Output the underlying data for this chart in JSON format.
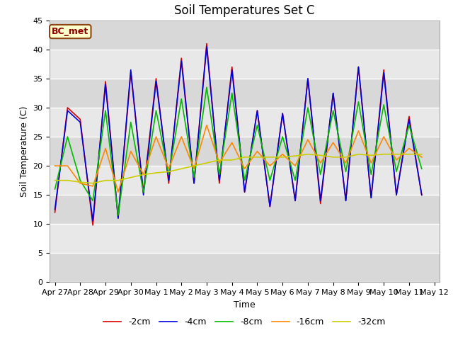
{
  "title": "Soil Temperatures Set C",
  "xlabel": "Time",
  "ylabel": "Soil Temperature (C)",
  "legend_label": "BC_met",
  "series_labels": [
    "-2cm",
    "-4cm",
    "-8cm",
    "-16cm",
    "-32cm"
  ],
  "series_colors": [
    "#dd0000",
    "#0000dd",
    "#00bb00",
    "#ff8800",
    "#cccc00"
  ],
  "ylim": [
    0,
    45
  ],
  "yticks": [
    0,
    5,
    10,
    15,
    20,
    25,
    30,
    35,
    40,
    45
  ],
  "background_color": "#e8e8e8",
  "fig_background": "#ffffff",
  "title_fontsize": 12,
  "label_fontsize": 9,
  "tick_fontsize": 8,
  "x_dates": [
    "Apr 27",
    "Apr 28",
    "Apr 29",
    "Apr 30",
    "May 1",
    "May 2",
    "May 3",
    "May 4",
    "May 5",
    "May 6",
    "May 7",
    "May 8",
    "May 9",
    "May 10",
    "May 11",
    "May 12"
  ],
  "data_2cm": [
    12.0,
    30.0,
    28.0,
    9.8,
    34.5,
    11.0,
    36.0,
    15.5,
    35.0,
    17.0,
    38.5,
    17.0,
    41.0,
    17.0,
    37.0,
    15.5,
    29.5,
    13.0,
    29.0,
    14.0,
    35.0,
    13.5,
    32.5,
    14.0,
    37.0,
    14.5,
    36.5,
    15.0,
    28.5,
    15.0
  ],
  "data_4cm": [
    12.5,
    29.5,
    27.5,
    10.5,
    34.0,
    11.0,
    36.5,
    15.0,
    34.5,
    17.5,
    38.0,
    17.0,
    40.5,
    17.5,
    36.5,
    15.5,
    29.5,
    13.0,
    29.0,
    14.0,
    35.0,
    14.0,
    32.5,
    14.0,
    37.0,
    14.5,
    36.0,
    15.0,
    28.0,
    15.0
  ],
  "data_8cm": [
    16.0,
    25.0,
    17.5,
    14.0,
    29.5,
    11.5,
    27.5,
    15.5,
    29.5,
    18.5,
    31.5,
    18.0,
    33.5,
    18.5,
    32.5,
    17.5,
    27.0,
    17.5,
    25.0,
    17.5,
    30.0,
    18.5,
    29.5,
    19.0,
    31.0,
    18.5,
    30.5,
    19.0,
    27.0,
    19.5
  ],
  "data_16cm": [
    20.0,
    20.0,
    17.0,
    16.5,
    23.0,
    15.5,
    22.5,
    18.5,
    25.0,
    19.5,
    25.0,
    19.5,
    27.0,
    20.5,
    24.0,
    19.5,
    22.5,
    20.0,
    22.0,
    20.0,
    24.5,
    20.5,
    24.0,
    20.5,
    26.0,
    20.5,
    25.0,
    21.0,
    23.0,
    21.5
  ],
  "data_32cm": [
    17.5,
    17.5,
    17.2,
    17.0,
    17.5,
    17.5,
    18.0,
    18.5,
    18.8,
    19.0,
    19.5,
    20.0,
    20.5,
    21.0,
    21.0,
    21.5,
    21.5,
    21.5,
    21.5,
    21.7,
    22.0,
    21.8,
    21.5,
    21.5,
    22.0,
    21.8,
    22.0,
    22.0,
    22.0,
    22.0
  ]
}
